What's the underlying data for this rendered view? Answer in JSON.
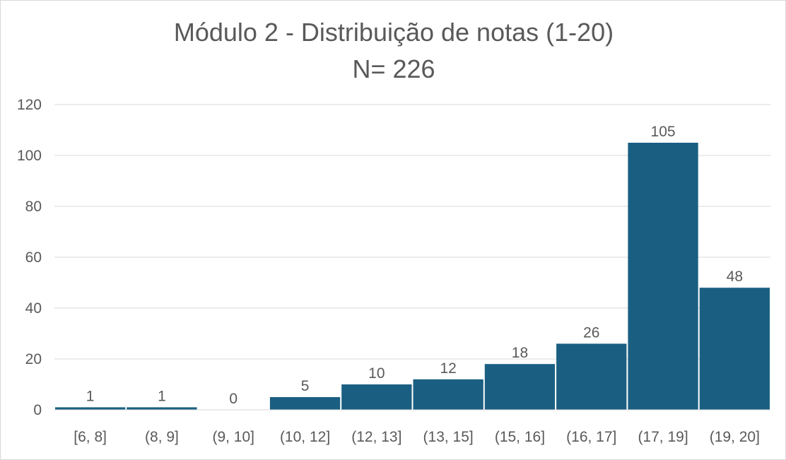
{
  "chart_data": {
    "type": "bar",
    "title": "Módulo 2 - Distribuição de notas  (1-20)",
    "subtitle": "N= 226",
    "xlabel": "",
    "ylabel": "",
    "categories": [
      "[6, 8]",
      "(8, 9]",
      "(9, 10]",
      "(10, 12]",
      "(12, 13]",
      "(13, 15]",
      "(15, 16]",
      "(16, 17]",
      "(17, 19]",
      "(19, 20]"
    ],
    "values": [
      1,
      1,
      0,
      5,
      10,
      12,
      18,
      26,
      105,
      48
    ],
    "ylim": [
      0,
      120
    ],
    "yticks": [
      0,
      20,
      40,
      60,
      80,
      100,
      120
    ],
    "grid": true,
    "legend": "none",
    "bar_color": "#1a5f82",
    "text_color": "#595959",
    "grid_color": "#d9d9d9"
  }
}
